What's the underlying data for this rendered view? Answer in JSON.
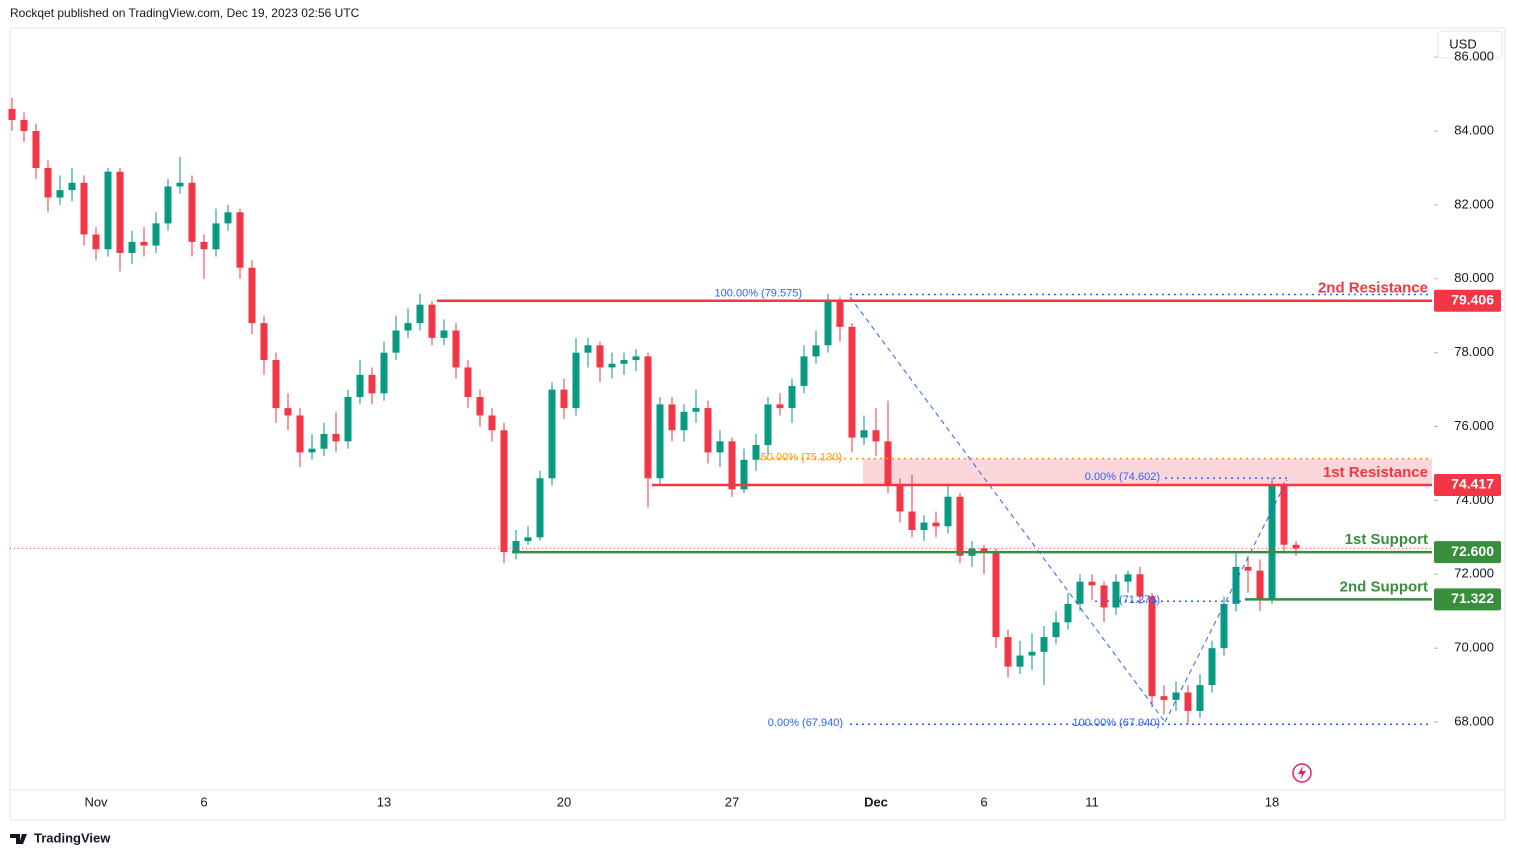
{
  "header": "Rockqet published on TradingView.com, Dec 19, 2023 02:56 UTC",
  "currency": "USD",
  "footer": "TradingView",
  "chart_data": {
    "type": "candlestick",
    "categories": [
      null,
      null,
      null,
      null,
      null,
      null,
      null,
      "Nov",
      null,
      null,
      null,
      null,
      null,
      null,
      null,
      null,
      "6",
      null,
      null,
      null,
      null,
      null,
      null,
      null,
      null,
      null,
      null,
      null,
      null,
      null,
      null,
      "13",
      null,
      null,
      null,
      null,
      null,
      null,
      null,
      null,
      null,
      null,
      null,
      null,
      null,
      null,
      "20",
      null,
      null,
      null,
      null,
      null,
      null,
      null,
      null,
      null,
      null,
      null,
      null,
      null,
      "27",
      null,
      null,
      null,
      null,
      null,
      null,
      null,
      null,
      null,
      null,
      null,
      "Dec",
      null,
      null,
      null,
      null,
      null,
      null,
      null,
      null,
      "6",
      null,
      null,
      null,
      null,
      null,
      null,
      null,
      null,
      "11",
      null,
      null,
      null,
      null,
      null,
      null,
      null,
      null,
      null,
      null,
      null,
      null,
      null,
      null,
      "18",
      null,
      null
    ],
    "open": [
      84.6,
      84.3,
      84.0,
      83.0,
      82.2,
      82.4,
      82.6,
      81.2,
      80.8,
      82.9,
      80.7,
      81.0,
      80.9,
      81.5,
      82.5,
      82.6,
      81.0,
      80.8,
      81.5,
      81.8,
      80.3,
      78.8,
      77.8,
      76.5,
      76.3,
      75.3,
      75.4,
      75.8,
      75.6,
      76.8,
      77.4,
      76.9,
      78.0,
      78.6,
      78.8,
      79.3,
      78.4,
      78.6,
      77.6,
      76.8,
      76.3,
      75.9,
      72.6,
      72.9,
      73.0,
      74.6,
      77.0,
      76.5,
      78.0,
      78.2,
      77.6,
      77.7,
      77.8,
      77.9,
      74.6,
      76.6,
      75.9,
      76.4,
      76.5,
      75.3,
      75.6,
      74.3,
      75.1,
      75.5,
      76.6,
      76.5,
      77.1,
      77.9,
      78.2,
      79.4,
      78.7,
      75.7,
      75.9,
      75.6,
      74.4,
      73.7,
      73.2,
      73.4,
      73.3,
      74.1,
      72.5,
      72.7,
      72.6,
      70.3,
      69.5,
      69.8,
      69.9,
      70.3,
      70.7,
      71.2,
      71.8,
      71.7,
      71.1,
      71.8,
      72.0,
      71.4,
      68.7,
      68.6,
      68.8,
      68.3,
      69.0,
      70.0,
      71.2,
      72.2,
      72.1,
      71.3,
      74.4,
      72.8
    ],
    "high": [
      84.9,
      84.5,
      84.2,
      83.2,
      82.8,
      83.0,
      82.8,
      81.4,
      83.0,
      83.0,
      81.3,
      81.4,
      81.8,
      82.7,
      83.3,
      82.8,
      81.2,
      81.9,
      82.0,
      81.9,
      80.5,
      79.0,
      78.0,
      76.9,
      76.5,
      75.8,
      76.1,
      76.4,
      77.0,
      77.8,
      77.6,
      78.3,
      79.0,
      79.2,
      79.6,
      79.4,
      78.9,
      78.8,
      77.8,
      77.0,
      76.5,
      76.1,
      73.2,
      73.3,
      74.8,
      77.2,
      77.3,
      78.4,
      78.4,
      78.3,
      78.0,
      78.0,
      78.1,
      78.0,
      76.8,
      76.8,
      76.6,
      77.0,
      76.7,
      75.9,
      75.7,
      75.4,
      75.8,
      76.8,
      76.9,
      77.3,
      78.2,
      78.6,
      79.6,
      79.5,
      78.8,
      76.3,
      76.5,
      76.7,
      74.6,
      74.7,
      73.6,
      73.7,
      74.4,
      74.2,
      72.9,
      72.8,
      72.7,
      70.5,
      70.2,
      70.4,
      70.6,
      71.0,
      71.5,
      72.0,
      72.0,
      71.8,
      72.0,
      72.1,
      72.2,
      71.5,
      69.0,
      69.1,
      69.0,
      69.3,
      70.2,
      71.4,
      72.6,
      72.5,
      72.4,
      74.6,
      74.5,
      72.9
    ],
    "low": [
      84.0,
      83.7,
      82.7,
      81.8,
      82.0,
      82.1,
      80.9,
      80.5,
      80.6,
      80.2,
      80.4,
      80.6,
      80.7,
      81.3,
      82.3,
      80.6,
      80.0,
      80.6,
      81.3,
      80.0,
      78.5,
      77.4,
      76.1,
      75.9,
      74.9,
      75.1,
      75.2,
      75.3,
      75.4,
      76.6,
      76.6,
      76.7,
      77.8,
      78.4,
      78.6,
      78.2,
      78.2,
      77.3,
      76.5,
      76.0,
      75.6,
      72.3,
      72.4,
      72.8,
      72.9,
      74.4,
      76.2,
      76.3,
      77.6,
      77.2,
      77.3,
      77.4,
      77.5,
      73.8,
      74.4,
      75.6,
      75.6,
      76.1,
      75.0,
      74.9,
      74.1,
      74.2,
      74.8,
      75.2,
      76.3,
      76.1,
      76.9,
      77.7,
      78.0,
      78.3,
      75.3,
      75.5,
      75.2,
      74.2,
      73.4,
      73.0,
      72.9,
      73.0,
      73.1,
      72.3,
      72.2,
      72.0,
      70.0,
      69.2,
      69.3,
      69.4,
      69.0,
      70.1,
      70.5,
      71.0,
      71.3,
      70.7,
      70.9,
      71.5,
      71.2,
      68.4,
      68.2,
      68.3,
      67.94,
      68.1,
      68.8,
      69.8,
      71.0,
      71.5,
      71.0,
      71.2,
      72.6,
      72.5
    ],
    "close": [
      84.3,
      84.0,
      83.0,
      82.2,
      82.4,
      82.6,
      81.2,
      80.8,
      82.9,
      80.7,
      81.0,
      80.9,
      81.5,
      82.5,
      82.6,
      81.0,
      80.8,
      81.5,
      81.8,
      80.3,
      78.8,
      77.8,
      76.5,
      76.3,
      75.3,
      75.4,
      75.8,
      75.6,
      76.8,
      77.4,
      76.9,
      78.0,
      78.6,
      78.8,
      79.3,
      78.4,
      78.6,
      77.6,
      76.8,
      76.3,
      75.9,
      72.6,
      72.9,
      73.0,
      74.6,
      77.0,
      76.5,
      78.0,
      78.2,
      77.6,
      77.7,
      77.8,
      77.9,
      74.6,
      76.6,
      75.9,
      76.4,
      76.5,
      75.3,
      75.6,
      74.3,
      75.1,
      75.5,
      76.6,
      76.5,
      77.1,
      77.9,
      78.2,
      79.4,
      78.7,
      75.7,
      75.9,
      75.6,
      74.4,
      73.7,
      73.2,
      73.4,
      73.3,
      74.1,
      72.5,
      72.7,
      72.6,
      70.3,
      69.5,
      69.8,
      69.9,
      70.3,
      70.7,
      71.2,
      71.8,
      71.7,
      71.1,
      71.8,
      72.0,
      71.4,
      68.7,
      68.6,
      68.8,
      68.3,
      69.0,
      70.0,
      71.2,
      72.2,
      72.1,
      71.3,
      74.4,
      72.8,
      72.7
    ],
    "up_color": "#089981",
    "down_color": "#f23645",
    "ylim": [
      66.16,
      86.79
    ],
    "yticks": [
      {
        "value": 68,
        "label": "68.000"
      },
      {
        "value": 70,
        "label": "70.000"
      },
      {
        "value": 72,
        "label": "72.000"
      },
      {
        "value": 74,
        "label": "74.000"
      },
      {
        "value": 76,
        "label": "76.000"
      },
      {
        "value": 78,
        "label": "78.000"
      },
      {
        "value": 80,
        "label": "80.000"
      },
      {
        "value": 82,
        "label": "82.000"
      },
      {
        "value": 84,
        "label": "84.000"
      },
      {
        "value": 86,
        "label": "86.000"
      }
    ],
    "levels": [
      {
        "name": "2nd Resistance",
        "value": 79.406,
        "label": "79.406",
        "color": "#f23645"
      },
      {
        "name": "1st Resistance",
        "value": 74.417,
        "label": "74.417",
        "color": "#f23645"
      },
      {
        "name": "1st Support",
        "value": 72.6,
        "label": "72.600",
        "color": "#388e3c"
      },
      {
        "name": "2nd Support",
        "value": 71.322,
        "label": "71.322",
        "color": "#388e3c"
      }
    ],
    "fib_labels": [
      {
        "text": "100.00% (79.575)",
        "value": 79.575,
        "color": "#2962ff"
      },
      {
        "text": "50.00% (75.130)",
        "value": 75.13,
        "color": "#ff9800"
      },
      {
        "text": "0.00% (74.602)",
        "value": 74.602,
        "color": "#2962ff"
      },
      {
        "text": "(71.271)",
        "value": 71.271,
        "color": "#2962ff"
      },
      {
        "text": "0.00% (67.940)",
        "value": 67.94,
        "color": "#2962ff"
      },
      {
        "text": "100.00% (67.940)",
        "value": 67.94,
        "color": "#2962ff"
      }
    ]
  }
}
